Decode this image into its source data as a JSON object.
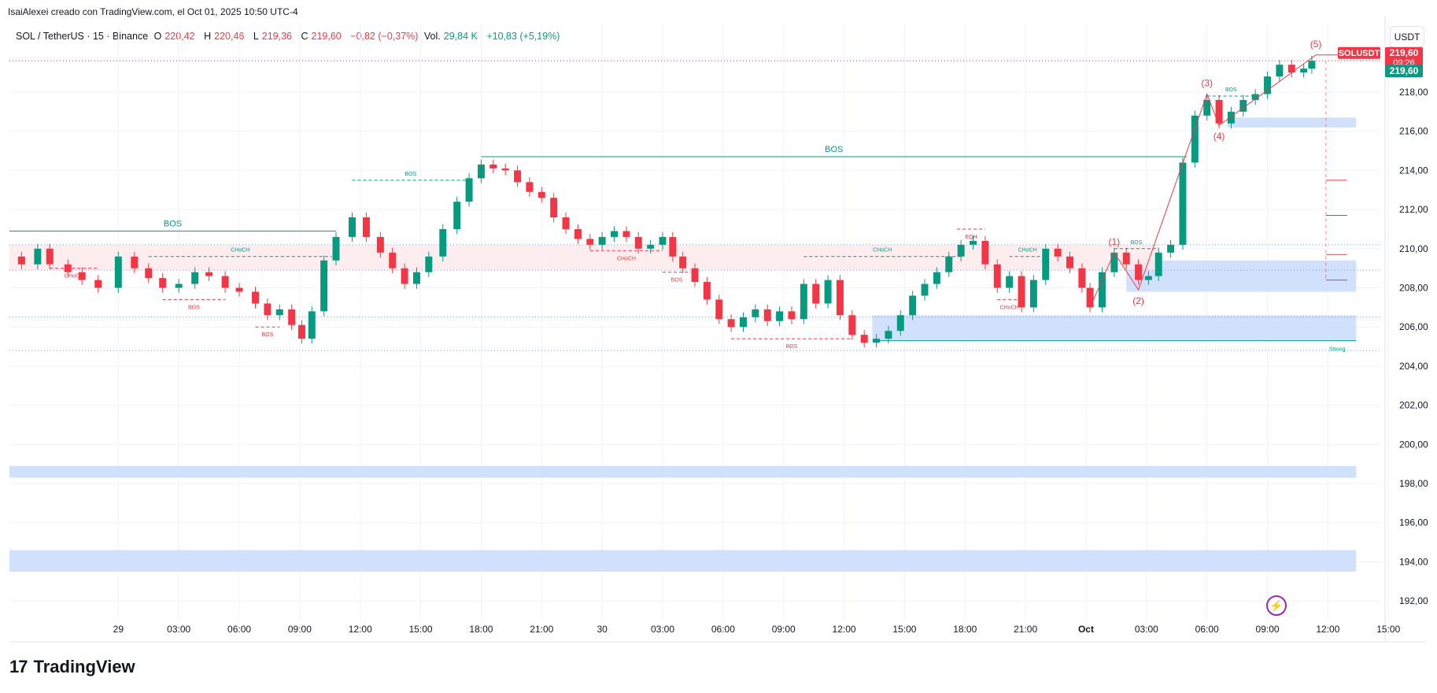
{
  "credit": "IsaiAlexei creado con TradingView.com, el Oct 01, 2025 10:50 UTC-4",
  "header": {
    "symbol": "SOL / TetherUS · 15 · Binance",
    "open_label": "O",
    "open": "220,42",
    "high_label": "H",
    "high": "220,46",
    "low_label": "L",
    "low": "219,36",
    "close_label": "C",
    "close": "219,60",
    "change": "−0,82 (−0,37%)",
    "vol_label": "Vol.",
    "vol": "29,84 K",
    "vol_change": "+10,83 (+5,19%)"
  },
  "unit_button": "USDT",
  "footer": {
    "logo_mark": "17",
    "brand": "TradingView"
  },
  "colors": {
    "up": "#089981",
    "down": "#f23645",
    "zone": "#d1e0fb",
    "zone_pink": "#fde8ea",
    "grid": "#f0f3fa"
  },
  "chart_data": {
    "type": "candlestick",
    "symbol": "SOLUSDT",
    "last_price": "219,60",
    "countdown": "09:26",
    "price_tag_label": "SOLUSDT",
    "ylim": [
      191,
      221.5
    ],
    "y_ticks": [
      192,
      194,
      196,
      198,
      200,
      202,
      204,
      206,
      208,
      210,
      212,
      214,
      216,
      218
    ],
    "y_tick_labels": [
      "192,00",
      "194,00",
      "196,00",
      "198,00",
      "200,00",
      "202,00",
      "204,00",
      "206,00",
      "208,00",
      "210,00",
      "212,00",
      "214,00",
      "216,00",
      "218,00"
    ],
    "x_range_hours": [
      -5.4,
      62.6
    ],
    "x_ticks": [
      {
        "t": 0,
        "label": "29"
      },
      {
        "t": 3,
        "label": "03:00"
      },
      {
        "t": 6,
        "label": "06:00"
      },
      {
        "t": 9,
        "label": "09:00"
      },
      {
        "t": 12,
        "label": "12:00"
      },
      {
        "t": 15,
        "label": "15:00"
      },
      {
        "t": 18,
        "label": "18:00"
      },
      {
        "t": 21,
        "label": "21:00"
      },
      {
        "t": 24,
        "label": "30"
      },
      {
        "t": 27,
        "label": "03:00"
      },
      {
        "t": 30,
        "label": "06:00"
      },
      {
        "t": 33,
        "label": "09:00"
      },
      {
        "t": 36,
        "label": "12:00"
      },
      {
        "t": 39,
        "label": "15:00"
      },
      {
        "t": 42,
        "label": "18:00"
      },
      {
        "t": 45,
        "label": "21:00"
      },
      {
        "t": 48,
        "label": "Oct"
      },
      {
        "t": 51,
        "label": "03:00"
      },
      {
        "t": 54,
        "label": "06:00"
      },
      {
        "t": 57,
        "label": "09:00"
      },
      {
        "t": 60,
        "label": "12:00"
      },
      {
        "t": 63,
        "label": "15:00"
      }
    ],
    "price_path": [
      [
        -5.3,
        209.6
      ],
      [
        -4.8,
        209.2
      ],
      [
        -4.0,
        210.0
      ],
      [
        -3.4,
        209.2
      ],
      [
        -2.5,
        208.8
      ],
      [
        -1.8,
        208.4
      ],
      [
        -1.0,
        208.0
      ],
      [
        0.0,
        209.6
      ],
      [
        0.8,
        209.0
      ],
      [
        1.5,
        208.5
      ],
      [
        2.2,
        208.0
      ],
      [
        3.0,
        208.2
      ],
      [
        3.8,
        208.8
      ],
      [
        4.5,
        208.6
      ],
      [
        5.3,
        208.0
      ],
      [
        6.0,
        207.8
      ],
      [
        6.8,
        207.2
      ],
      [
        7.4,
        206.6
      ],
      [
        8.0,
        206.9
      ],
      [
        8.6,
        206.1
      ],
      [
        9.1,
        205.4
      ],
      [
        9.6,
        206.8
      ],
      [
        10.2,
        209.4
      ],
      [
        10.8,
        210.6
      ],
      [
        11.6,
        211.6
      ],
      [
        12.3,
        210.6
      ],
      [
        13.0,
        209.8
      ],
      [
        13.6,
        209.0
      ],
      [
        14.2,
        208.2
      ],
      [
        14.8,
        208.8
      ],
      [
        15.4,
        209.6
      ],
      [
        16.1,
        211.0
      ],
      [
        16.8,
        212.4
      ],
      [
        17.4,
        213.6
      ],
      [
        18.0,
        214.3
      ],
      [
        18.6,
        214.1
      ],
      [
        19.2,
        214.0
      ],
      [
        19.8,
        213.4
      ],
      [
        20.4,
        212.9
      ],
      [
        21.0,
        212.6
      ],
      [
        21.6,
        211.6
      ],
      [
        22.2,
        211.0
      ],
      [
        22.8,
        210.5
      ],
      [
        23.4,
        210.2
      ],
      [
        24.0,
        210.6
      ],
      [
        24.6,
        210.9
      ],
      [
        25.2,
        210.6
      ],
      [
        25.8,
        210.0
      ],
      [
        26.4,
        210.2
      ],
      [
        27.0,
        210.6
      ],
      [
        27.5,
        209.6
      ],
      [
        28.0,
        209.0
      ],
      [
        28.6,
        208.3
      ],
      [
        29.2,
        207.4
      ],
      [
        29.8,
        206.4
      ],
      [
        30.4,
        206.0
      ],
      [
        31.0,
        206.5
      ],
      [
        31.6,
        206.9
      ],
      [
        32.2,
        206.3
      ],
      [
        32.8,
        206.8
      ],
      [
        33.4,
        206.4
      ],
      [
        34.0,
        208.2
      ],
      [
        34.6,
        207.2
      ],
      [
        35.2,
        208.4
      ],
      [
        35.8,
        206.6
      ],
      [
        36.4,
        205.6
      ],
      [
        37.0,
        205.2
      ],
      [
        37.6,
        205.4
      ],
      [
        38.2,
        205.8
      ],
      [
        38.8,
        206.6
      ],
      [
        39.4,
        207.6
      ],
      [
        40.0,
        208.2
      ],
      [
        40.6,
        208.8
      ],
      [
        41.2,
        209.6
      ],
      [
        41.8,
        210.2
      ],
      [
        42.4,
        210.4
      ],
      [
        43.0,
        209.2
      ],
      [
        43.6,
        208.0
      ],
      [
        44.2,
        208.6
      ],
      [
        44.8,
        207.0
      ],
      [
        45.4,
        208.4
      ],
      [
        46.0,
        210.0
      ],
      [
        46.6,
        209.6
      ],
      [
        47.2,
        209.0
      ],
      [
        47.8,
        208.0
      ],
      [
        48.2,
        207.0
      ],
      [
        48.8,
        208.8
      ],
      [
        49.4,
        209.8
      ],
      [
        50.0,
        209.2
      ],
      [
        50.6,
        208.4
      ],
      [
        51.1,
        208.6
      ],
      [
        51.6,
        209.8
      ],
      [
        52.2,
        210.2
      ],
      [
        52.8,
        214.4
      ],
      [
        53.4,
        216.8
      ],
      [
        54.0,
        217.6
      ],
      [
        54.6,
        216.4
      ],
      [
        55.2,
        217.0
      ],
      [
        55.8,
        217.6
      ],
      [
        56.4,
        217.9
      ],
      [
        57.0,
        218.8
      ],
      [
        57.6,
        219.4
      ],
      [
        58.2,
        219.0
      ],
      [
        58.8,
        219.2
      ],
      [
        59.2,
        219.6
      ]
    ],
    "zones": [
      {
        "t0": -5.4,
        "t1": 61.4,
        "p0": 198.3,
        "p1": 198.9,
        "color": "blue"
      },
      {
        "t0": -5.4,
        "t1": 61.4,
        "p0": 193.5,
        "p1": 194.6,
        "color": "blue"
      },
      {
        "t0": 37.4,
        "t1": 61.4,
        "p0": 205.3,
        "p1": 206.6,
        "color": "blue"
      },
      {
        "t0": 50.0,
        "t1": 61.4,
        "p0": 207.8,
        "p1": 209.4,
        "color": "blue"
      },
      {
        "t0": 55.0,
        "t1": 61.4,
        "p0": 216.2,
        "p1": 216.7,
        "color": "blue"
      },
      {
        "t0": -5.4,
        "t1": 51.6,
        "p0": 208.9,
        "p1": 210.2,
        "color": "pink"
      }
    ],
    "structure_lines": [
      {
        "t0": -5.4,
        "t1": 10.8,
        "p": 210.9,
        "label": "BOS",
        "style": "solid",
        "color": "green"
      },
      {
        "t0": 18.0,
        "t1": 53.0,
        "p": 214.7,
        "label": "BOS",
        "style": "solid",
        "color": "green"
      },
      {
        "t0": 37.4,
        "t1": 61.4,
        "p": 205.3,
        "label": "Strong",
        "style": "solid",
        "color": "green"
      },
      {
        "t0": 11.6,
        "t1": 17.4,
        "p": 213.5,
        "label": "BOS",
        "style": "dashed",
        "color": "green"
      },
      {
        "t0": 1.5,
        "t1": 10.6,
        "p": 209.6,
        "label": "CHoCH",
        "style": "dashed",
        "color": "green"
      },
      {
        "t0": 34.0,
        "t1": 41.8,
        "p": 209.6,
        "label": "CHoCH",
        "style": "dashed",
        "color": "green"
      },
      {
        "t0": 44.2,
        "t1": 46.0,
        "p": 209.6,
        "label": "CHoCH",
        "style": "dashed",
        "color": "green"
      },
      {
        "t0": 49.4,
        "t1": 51.6,
        "p": 210.0,
        "label": "BOS",
        "style": "dashed",
        "color": "green"
      },
      {
        "t0": 54.0,
        "t1": 56.4,
        "p": 217.8,
        "label": "BOS",
        "style": "dashed",
        "color": "green"
      },
      {
        "t0": -3.4,
        "t1": -1.0,
        "p": 209.0,
        "label": "CHoCH",
        "style": "dashed",
        "color": "red"
      },
      {
        "t0": 2.2,
        "t1": 5.3,
        "p": 207.4,
        "label": "BOS",
        "style": "dashed",
        "color": "red"
      },
      {
        "t0": 6.8,
        "t1": 8.0,
        "p": 206.0,
        "label": "BOS",
        "style": "dashed",
        "color": "red"
      },
      {
        "t0": 23.4,
        "t1": 27.0,
        "p": 209.9,
        "label": "CHoCH",
        "style": "dashed",
        "color": "red"
      },
      {
        "t0": 27.0,
        "t1": 28.4,
        "p": 208.8,
        "label": "BOS",
        "style": "dashed",
        "color": "red"
      },
      {
        "t0": 30.4,
        "t1": 36.4,
        "p": 205.4,
        "label": "BOS",
        "style": "dashed",
        "color": "red"
      },
      {
        "t0": 43.6,
        "t1": 44.8,
        "p": 207.4,
        "label": "CHoCH",
        "style": "dashed",
        "color": "red"
      },
      {
        "t0": 41.6,
        "t1": 43.0,
        "p": 211.0,
        "label": "EQH",
        "style": "dashed",
        "color": "red"
      }
    ],
    "horizontal_refs": [
      {
        "p": 210.2,
        "color": "blue-dotted"
      },
      {
        "p": 208.9,
        "color": "blue-dotted"
      },
      {
        "p": 206.5,
        "color": "blue-dotted"
      },
      {
        "p": 204.8,
        "color": "blue-dotted"
      },
      {
        "p": 219.6,
        "color": "red-dotted"
      }
    ],
    "elliott_waves": [
      {
        "label": "(1)",
        "t": 49.4,
        "p": 209.8
      },
      {
        "label": "(2)",
        "t": 50.6,
        "p": 207.9
      },
      {
        "label": "(3)",
        "t": 54.0,
        "p": 217.9
      },
      {
        "label": "(4)",
        "t": 54.6,
        "p": 216.3
      },
      {
        "label": "(5)",
        "t": 59.4,
        "p": 219.9
      }
    ],
    "target_lines": [
      {
        "p": 213.5
      },
      {
        "p": 211.7
      },
      {
        "p": 209.7
      },
      {
        "p": 208.4
      }
    ]
  }
}
